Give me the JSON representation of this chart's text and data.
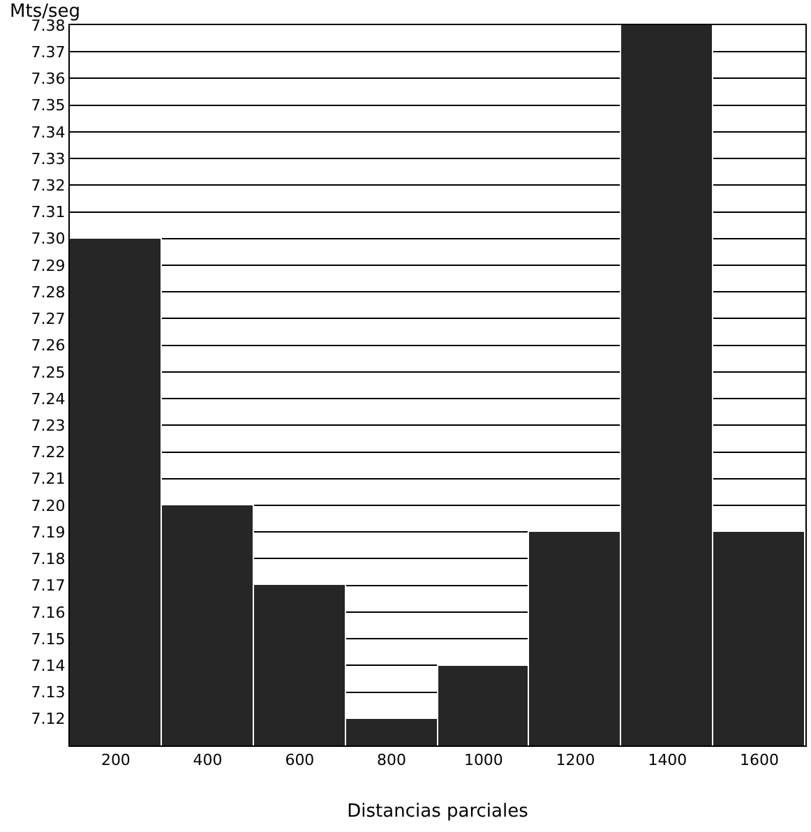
{
  "chart_data": {
    "type": "bar",
    "xlabel": "Distancias parciales",
    "ylabel": "Mts/seg",
    "categories": [
      "200",
      "400",
      "600",
      "800",
      "1000",
      "1200",
      "1400",
      "1600"
    ],
    "values": [
      7.3,
      7.2,
      7.17,
      7.12,
      7.14,
      7.19,
      7.38,
      7.19
    ],
    "color": "#262626",
    "ylim": [
      7.11,
      7.38
    ],
    "yticks": [
      7.12,
      7.13,
      7.14,
      7.15,
      7.16,
      7.17,
      7.18,
      7.19,
      {
        "value": 7.2,
        "label": "7.20"
      },
      7.21,
      7.22,
      7.23,
      7.24,
      7.25,
      7.26,
      7.27,
      7.28,
      7.29,
      {
        "value": 7.3,
        "label": "7.30"
      },
      7.31,
      7.32,
      7.33,
      7.34,
      7.35,
      7.36,
      7.37,
      7.38
    ],
    "grid": "y"
  }
}
